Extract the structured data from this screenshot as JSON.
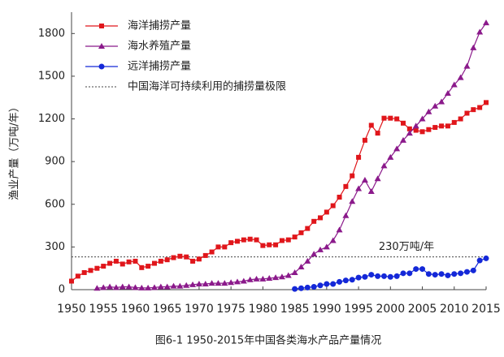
{
  "chart_data": {
    "type": "line",
    "y_label": "渔业产量（万吨/年）",
    "caption": "图6-1  1950-2015年中国各类海水产品产量情况",
    "x": [
      1950,
      1951,
      1952,
      1953,
      1954,
      1955,
      1956,
      1957,
      1958,
      1959,
      1960,
      1961,
      1962,
      1963,
      1964,
      1965,
      1966,
      1967,
      1968,
      1969,
      1970,
      1971,
      1972,
      1973,
      1974,
      1975,
      1976,
      1977,
      1978,
      1979,
      1980,
      1981,
      1982,
      1983,
      1984,
      1985,
      1986,
      1987,
      1988,
      1989,
      1990,
      1991,
      1992,
      1993,
      1994,
      1995,
      1996,
      1997,
      1998,
      1999,
      2000,
      2001,
      2002,
      2003,
      2004,
      2005,
      2006,
      2007,
      2008,
      2009,
      2010,
      2011,
      2012,
      2013,
      2014,
      2015
    ],
    "series": [
      {
        "name": "海洋捕捞产量",
        "color": "#e0161b",
        "marker": "square",
        "values": [
          60,
          95,
          120,
          135,
          150,
          165,
          185,
          200,
          180,
          195,
          200,
          155,
          165,
          185,
          200,
          210,
          225,
          235,
          230,
          200,
          215,
          240,
          265,
          300,
          300,
          330,
          340,
          350,
          355,
          350,
          310,
          315,
          315,
          345,
          350,
          370,
          400,
          430,
          480,
          505,
          545,
          590,
          650,
          725,
          800,
          930,
          1050,
          1155,
          1100,
          1205,
          1205,
          1200,
          1170,
          1130,
          1120,
          1110,
          1125,
          1140,
          1150,
          1150,
          1175,
          1200,
          1240,
          1265,
          1280,
          1315
        ]
      },
      {
        "name": "海水养殖产量",
        "color": "#8b1a8b",
        "marker": "triangle",
        "values": [
          null,
          null,
          null,
          null,
          10,
          15,
          20,
          15,
          20,
          20,
          15,
          12,
          12,
          15,
          20,
          20,
          25,
          25,
          30,
          35,
          40,
          40,
          45,
          45,
          45,
          50,
          55,
          60,
          70,
          75,
          75,
          80,
          85,
          90,
          100,
          120,
          160,
          200,
          250,
          280,
          300,
          345,
          420,
          520,
          620,
          710,
          770,
          690,
          780,
          870,
          930,
          990,
          1050,
          1100,
          1150,
          1200,
          1250,
          1290,
          1320,
          1380,
          1440,
          1490,
          1570,
          1700,
          1810,
          1875
        ]
      },
      {
        "name": "远洋捕捞产量",
        "color": "#1428d8",
        "marker": "circle",
        "values": [
          null,
          null,
          null,
          null,
          null,
          null,
          null,
          null,
          null,
          null,
          null,
          null,
          null,
          null,
          null,
          null,
          null,
          null,
          null,
          null,
          null,
          null,
          null,
          null,
          null,
          null,
          null,
          null,
          null,
          null,
          null,
          null,
          null,
          null,
          null,
          5,
          10,
          15,
          20,
          30,
          40,
          40,
          55,
          65,
          70,
          85,
          90,
          105,
          95,
          95,
          90,
          95,
          115,
          115,
          145,
          145,
          110,
          105,
          110,
          100,
          110,
          115,
          125,
          135,
          205,
          220
        ]
      }
    ],
    "hline": {
      "name": "中国海洋可持续利用的捕捞量极限",
      "value": 230,
      "annotation": "230万吨/年",
      "color": "#444"
    },
    "xlim": [
      1950,
      2015
    ],
    "xticks": [
      1950,
      1955,
      1960,
      1965,
      1970,
      1975,
      1980,
      1985,
      1990,
      1995,
      2000,
      2005,
      2010,
      2015
    ],
    "ylim": [
      0,
      1950
    ],
    "yticks": [
      0,
      300,
      600,
      900,
      1200,
      1500,
      1800
    ]
  }
}
